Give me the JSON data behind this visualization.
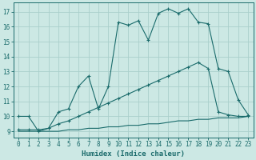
{
  "xlabel": "Humidex (Indice chaleur)",
  "bg_color": "#cce8e4",
  "line_color": "#1a6b6b",
  "grid_color": "#aacfcc",
  "xlim": [
    -0.5,
    23.5
  ],
  "ylim": [
    8.6,
    17.6
  ],
  "xticks": [
    0,
    1,
    2,
    3,
    4,
    5,
    6,
    7,
    8,
    9,
    10,
    11,
    12,
    13,
    14,
    15,
    16,
    17,
    18,
    19,
    20,
    21,
    22,
    23
  ],
  "yticks": [
    9,
    10,
    11,
    12,
    13,
    14,
    15,
    16,
    17
  ],
  "series1_x": [
    0,
    1,
    2,
    3,
    4,
    5,
    6,
    7,
    8,
    9,
    10,
    11,
    12,
    13,
    14,
    15,
    16,
    17,
    18,
    19,
    20,
    21,
    22,
    23
  ],
  "series1_y": [
    10,
    10,
    9,
    9.2,
    10.3,
    10.5,
    12.0,
    12.7,
    10.5,
    12.0,
    16.3,
    16.1,
    16.4,
    15.1,
    16.9,
    17.2,
    16.9,
    17.2,
    16.3,
    16.2,
    13.2,
    13.0,
    11.1,
    10.1
  ],
  "series2_x": [
    0,
    1,
    2,
    3,
    4,
    5,
    6,
    7,
    8,
    9,
    10,
    11,
    12,
    13,
    14,
    15,
    16,
    17,
    18,
    19,
    20,
    21,
    22,
    23
  ],
  "series2_y": [
    9.1,
    9.1,
    9.1,
    9.2,
    9.5,
    9.7,
    10.0,
    10.3,
    10.6,
    10.9,
    11.2,
    11.5,
    11.8,
    12.1,
    12.4,
    12.7,
    13.0,
    13.3,
    13.6,
    13.2,
    10.3,
    10.1,
    10.0,
    10.0
  ],
  "series3_x": [
    0,
    1,
    2,
    3,
    4,
    5,
    6,
    7,
    8,
    9,
    10,
    11,
    12,
    13,
    14,
    15,
    16,
    17,
    18,
    19,
    20,
    21,
    22,
    23
  ],
  "series3_y": [
    9.0,
    9.0,
    9.0,
    9.0,
    9.0,
    9.1,
    9.1,
    9.2,
    9.2,
    9.3,
    9.3,
    9.4,
    9.4,
    9.5,
    9.5,
    9.6,
    9.7,
    9.7,
    9.8,
    9.8,
    9.9,
    9.9,
    9.9,
    10.0
  ],
  "figsize": [
    3.2,
    2.0
  ],
  "dpi": 100
}
